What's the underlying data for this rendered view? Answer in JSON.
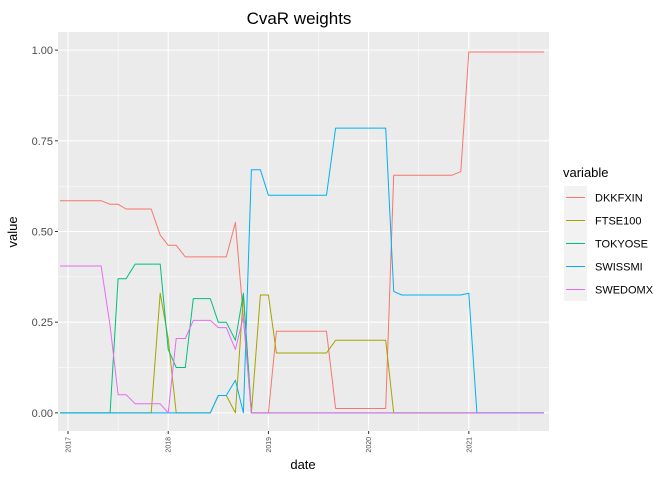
{
  "chart_data": {
    "type": "line",
    "title": "CvaR weights",
    "xlabel": "date",
    "ylabel": "value",
    "x_ticks": [
      "2017",
      "2018",
      "2019",
      "2020",
      "2021"
    ],
    "y_ticks": [
      "0.00",
      "0.25",
      "0.50",
      "0.75",
      "1.00"
    ],
    "xlim": [
      2016.9,
      2021.8
    ],
    "ylim": [
      -0.05,
      1.05
    ],
    "grid": true,
    "legend": {
      "title": "variable",
      "position": "right"
    },
    "series": [
      {
        "name": "DKKFXIN",
        "color": "#F8766D",
        "points": [
          [
            2016.92,
            0.585
          ],
          [
            2017.33,
            0.585
          ],
          [
            2017.42,
            0.575
          ],
          [
            2017.5,
            0.575
          ],
          [
            2017.58,
            0.562
          ],
          [
            2017.83,
            0.562
          ],
          [
            2017.92,
            0.49
          ],
          [
            2018.0,
            0.462
          ],
          [
            2018.08,
            0.462
          ],
          [
            2018.17,
            0.43
          ],
          [
            2018.58,
            0.43
          ],
          [
            2018.67,
            0.525
          ],
          [
            2018.83,
            0.0
          ],
          [
            2019.0,
            0.0
          ],
          [
            2019.08,
            0.225
          ],
          [
            2019.58,
            0.225
          ],
          [
            2019.67,
            0.012
          ],
          [
            2020.17,
            0.012
          ],
          [
            2020.25,
            0.655
          ],
          [
            2020.83,
            0.655
          ],
          [
            2020.92,
            0.665
          ],
          [
            2021.0,
            0.995
          ],
          [
            2021.75,
            0.995
          ]
        ]
      },
      {
        "name": "FTSE100",
        "color": "#A3A500",
        "points": [
          [
            2016.92,
            0.0
          ],
          [
            2017.83,
            0.0
          ],
          [
            2017.92,
            0.33
          ],
          [
            2018.0,
            0.205
          ],
          [
            2018.08,
            0.0
          ],
          [
            2018.42,
            0.0
          ],
          [
            2018.5,
            0.048
          ],
          [
            2018.58,
            0.048
          ],
          [
            2018.67,
            0.0
          ],
          [
            2018.75,
            0.325
          ],
          [
            2018.83,
            0.0
          ],
          [
            2018.92,
            0.325
          ],
          [
            2019.0,
            0.325
          ],
          [
            2019.08,
            0.165
          ],
          [
            2019.58,
            0.165
          ],
          [
            2019.67,
            0.2
          ],
          [
            2020.17,
            0.2
          ],
          [
            2020.25,
            0.0
          ],
          [
            2021.75,
            0.0
          ]
        ]
      },
      {
        "name": "TOKYOSE",
        "color": "#00BF7D",
        "points": [
          [
            2016.92,
            0.0
          ],
          [
            2017.42,
            0.0
          ],
          [
            2017.5,
            0.37
          ],
          [
            2017.58,
            0.37
          ],
          [
            2017.67,
            0.41
          ],
          [
            2017.92,
            0.41
          ],
          [
            2018.0,
            0.175
          ],
          [
            2018.08,
            0.125
          ],
          [
            2018.17,
            0.125
          ],
          [
            2018.25,
            0.315
          ],
          [
            2018.42,
            0.315
          ],
          [
            2018.5,
            0.25
          ],
          [
            2018.58,
            0.25
          ],
          [
            2018.67,
            0.2
          ],
          [
            2018.75,
            0.33
          ],
          [
            2018.83,
            0.0
          ],
          [
            2021.75,
            0.0
          ]
        ]
      },
      {
        "name": "SWISSMI",
        "color": "#00B0F6",
        "points": [
          [
            2016.92,
            0.0
          ],
          [
            2018.42,
            0.0
          ],
          [
            2018.5,
            0.048
          ],
          [
            2018.58,
            0.048
          ],
          [
            2018.67,
            0.09
          ],
          [
            2018.75,
            0.0
          ],
          [
            2018.83,
            0.67
          ],
          [
            2018.92,
            0.67
          ],
          [
            2019.0,
            0.6
          ],
          [
            2019.58,
            0.6
          ],
          [
            2019.67,
            0.785
          ],
          [
            2020.17,
            0.785
          ],
          [
            2020.25,
            0.335
          ],
          [
            2020.33,
            0.325
          ],
          [
            2020.92,
            0.325
          ],
          [
            2021.0,
            0.33
          ],
          [
            2021.08,
            0.0
          ],
          [
            2021.75,
            0.0
          ]
        ]
      },
      {
        "name": "SWEDOMX",
        "color": "#E76BF3",
        "points": [
          [
            2016.92,
            0.405
          ],
          [
            2017.33,
            0.405
          ],
          [
            2017.42,
            0.24
          ],
          [
            2017.5,
            0.05
          ],
          [
            2017.58,
            0.05
          ],
          [
            2017.67,
            0.025
          ],
          [
            2017.92,
            0.025
          ],
          [
            2018.0,
            0.0
          ],
          [
            2018.08,
            0.205
          ],
          [
            2018.17,
            0.205
          ],
          [
            2018.25,
            0.255
          ],
          [
            2018.42,
            0.255
          ],
          [
            2018.5,
            0.235
          ],
          [
            2018.58,
            0.235
          ],
          [
            2018.67,
            0.175
          ],
          [
            2018.75,
            0.265
          ],
          [
            2018.83,
            0.0
          ],
          [
            2021.75,
            0.0
          ]
        ]
      }
    ]
  }
}
